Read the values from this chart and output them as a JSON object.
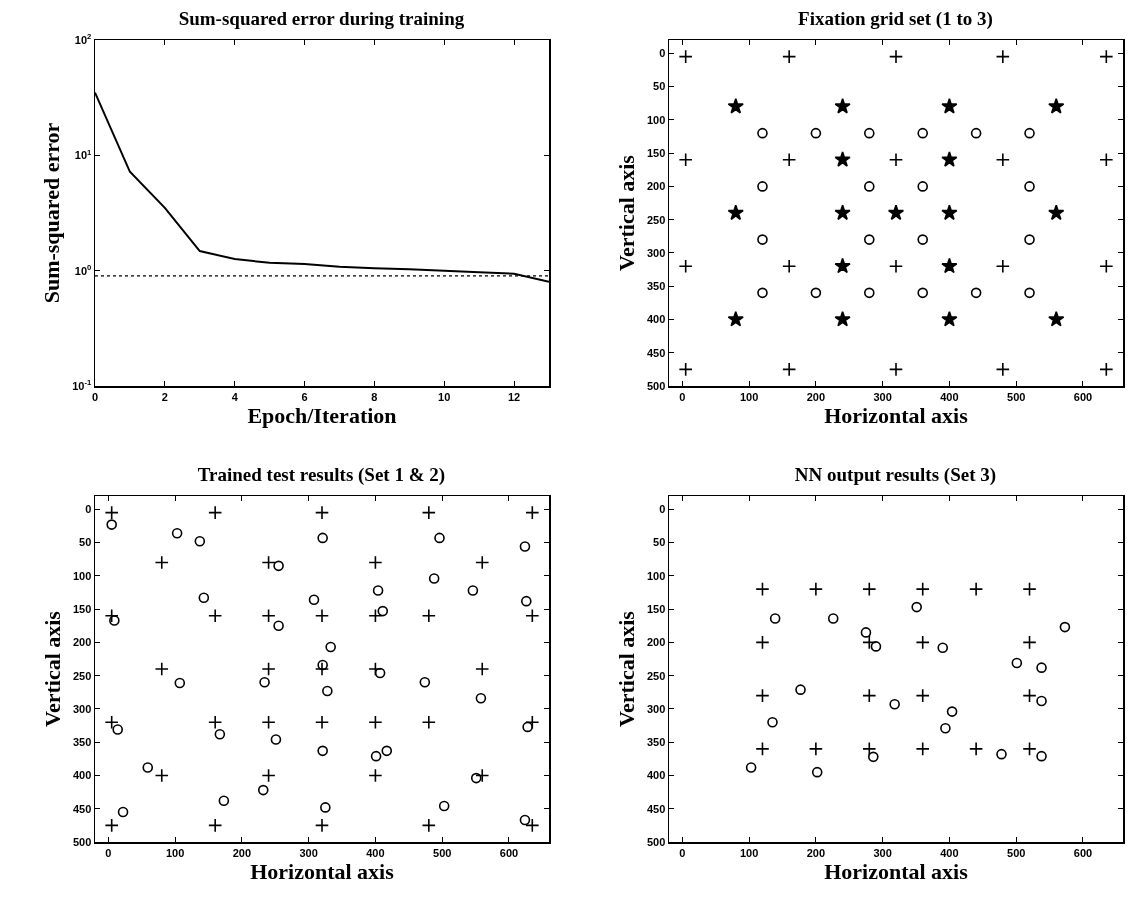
{
  "chart_data": [
    {
      "type": "line",
      "title": "Sum-squared error during training",
      "xlabel": "Epoch/Iteration",
      "ylabel": "Sum-squared error",
      "x": [
        0,
        1,
        2,
        3,
        4,
        5,
        6,
        7,
        8,
        9,
        10,
        11,
        12,
        13
      ],
      "values": [
        35,
        7.2,
        3.5,
        1.48,
        1.26,
        1.17,
        1.14,
        1.08,
        1.05,
        1.03,
        1.0,
        0.97,
        0.94,
        0.8
      ],
      "color": "#000000",
      "marker": "none",
      "line_style": "solid",
      "log": "y",
      "grid": false,
      "xlim": [
        0,
        13
      ],
      "xticks": [
        0,
        2,
        4,
        6,
        8,
        10,
        12
      ],
      "ylim": [
        0.1,
        100
      ],
      "yticks": [
        {
          "value": 0.1,
          "label": "10$^{-1}$"
        },
        {
          "value": 1,
          "label": "10$^{0}$"
        },
        {
          "value": 10,
          "label": "10$^{1}$"
        },
        {
          "value": 100,
          "label": "10$^{2}$"
        }
      ],
      "ref_lines": [
        {
          "axis": "y",
          "value": 0.9,
          "line_style": "dotted",
          "color": "#000000"
        }
      ]
    },
    {
      "type": "scatter",
      "title": "Fixation grid set (1 to 3)",
      "xlabel": "Horizontal axis",
      "ylabel": "Vertical axis",
      "grid": false,
      "xlim": [
        -20,
        660
      ],
      "xticks": [
        0,
        100,
        200,
        300,
        400,
        500,
        600
      ],
      "ylim": [
        500,
        -20
      ],
      "yticks": [
        0,
        50,
        100,
        150,
        200,
        250,
        300,
        350,
        400,
        450,
        500
      ],
      "series": [
        {
          "color": "#000000",
          "marker": "cross",
          "x": [
            5,
            160,
            320,
            480,
            635,
            5,
            160,
            320,
            480,
            635,
            5,
            160,
            320,
            480,
            635,
            5,
            160,
            320,
            480,
            635
          ],
          "values": [
            5,
            5,
            5,
            5,
            5,
            160,
            160,
            160,
            160,
            160,
            320,
            320,
            320,
            320,
            320,
            475,
            475,
            475,
            475,
            475
          ]
        },
        {
          "color": "#000000",
          "marker": "star",
          "x": [
            80,
            240,
            400,
            560,
            240,
            400,
            80,
            240,
            320,
            400,
            560,
            240,
            400,
            80,
            240,
            400,
            560
          ],
          "values": [
            80,
            80,
            80,
            80,
            160,
            160,
            240,
            240,
            240,
            240,
            240,
            320,
            320,
            400,
            400,
            400,
            400
          ]
        },
        {
          "color": "#000000",
          "marker": "circle",
          "x": [
            120,
            200,
            280,
            360,
            440,
            520,
            120,
            280,
            360,
            520,
            120,
            280,
            360,
            520,
            120,
            200,
            280,
            360,
            440,
            520
          ],
          "values": [
            120,
            120,
            120,
            120,
            120,
            120,
            200,
            200,
            200,
            200,
            280,
            280,
            280,
            280,
            360,
            360,
            360,
            360,
            360,
            360
          ]
        }
      ]
    },
    {
      "type": "scatter",
      "title": "Trained test results (Set 1 & 2)",
      "xlabel": "Horizontal axis",
      "ylabel": "Vertical axis",
      "grid": false,
      "xlim": [
        -20,
        660
      ],
      "xticks": [
        0,
        100,
        200,
        300,
        400,
        500,
        600
      ],
      "ylim": [
        500,
        -20
      ],
      "yticks": [
        0,
        50,
        100,
        150,
        200,
        250,
        300,
        350,
        400,
        450,
        500
      ],
      "series": [
        {
          "color": "#000000",
          "marker": "cross",
          "x": [
            5,
            160,
            320,
            480,
            635,
            80,
            240,
            400,
            560,
            5,
            160,
            240,
            320,
            400,
            480,
            635,
            80,
            240,
            320,
            400,
            560,
            5,
            160,
            240,
            320,
            400,
            480,
            635,
            80,
            240,
            400,
            560,
            5,
            160,
            320,
            480,
            635
          ],
          "values": [
            5,
            5,
            5,
            5,
            5,
            80,
            80,
            80,
            80,
            160,
            160,
            160,
            160,
            160,
            160,
            160,
            240,
            240,
            240,
            240,
            240,
            320,
            320,
            320,
            320,
            320,
            320,
            320,
            400,
            400,
            400,
            400,
            475,
            475,
            475,
            475,
            475
          ]
        },
        {
          "color": "#000000",
          "marker": "circle",
          "x": [
            5,
            103,
            137,
            321,
            496,
            624,
            255,
            488,
            404,
            546,
            143,
            308,
            626,
            411,
            9,
            255,
            333,
            321,
            407,
            107,
            234,
            328,
            474,
            558,
            14,
            167,
            251,
            628,
            321,
            417,
            401,
            59,
            551,
            232,
            173,
            22,
            325,
            503,
            624
          ],
          "values": [
            23,
            36,
            48,
            43,
            43,
            56,
            85,
            104,
            122,
            122,
            133,
            136,
            138,
            153,
            167,
            175,
            207,
            234,
            246,
            261,
            260,
            273,
            260,
            284,
            331,
            338,
            346,
            327,
            363,
            363,
            371,
            388,
            404,
            422,
            438,
            455,
            448,
            446,
            467
          ]
        }
      ]
    },
    {
      "type": "scatter",
      "title": "NN output results (Set 3)",
      "xlabel": "Horizontal axis",
      "ylabel": "Vertical axis",
      "grid": false,
      "xlim": [
        -20,
        660
      ],
      "xticks": [
        0,
        100,
        200,
        300,
        400,
        500,
        600
      ],
      "ylim": [
        500,
        -20
      ],
      "yticks": [
        0,
        50,
        100,
        150,
        200,
        250,
        300,
        350,
        400,
        450,
        500
      ],
      "series": [
        {
          "color": "#000000",
          "marker": "cross",
          "x": [
            120,
            200,
            280,
            360,
            440,
            520,
            120,
            280,
            360,
            520,
            120,
            280,
            360,
            520,
            120,
            200,
            280,
            360,
            440,
            520
          ],
          "values": [
            120,
            120,
            120,
            120,
            120,
            120,
            200,
            200,
            200,
            200,
            280,
            280,
            280,
            280,
            360,
            360,
            360,
            360,
            360,
            360
          ]
        },
        {
          "color": "#000000",
          "marker": "circle",
          "x": [
            139,
            226,
            351,
            275,
            290,
            390,
            573,
            501,
            538,
            177,
            318,
            404,
            538,
            135,
            394,
            103,
            202,
            286,
            478,
            538
          ],
          "values": [
            164,
            164,
            147,
            185,
            206,
            208,
            177,
            231,
            238,
            271,
            293,
            304,
            288,
            320,
            329,
            388,
            395,
            372,
            368,
            371
          ]
        }
      ]
    }
  ]
}
